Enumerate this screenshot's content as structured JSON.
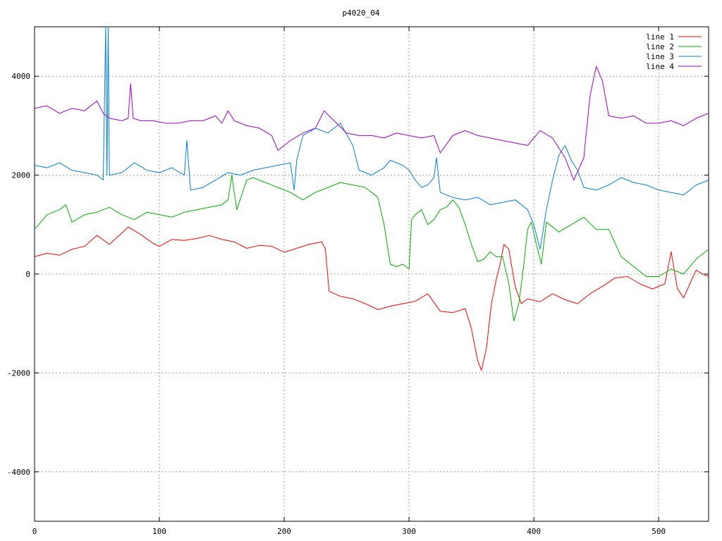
{
  "chart_data": {
    "type": "line",
    "title": "p4020_04",
    "xlabel": "",
    "ylabel": "",
    "xlim": [
      0,
      540
    ],
    "ylim": [
      -5000,
      5000
    ],
    "grid": true,
    "legend_position": "top-right",
    "x_ticks": [
      0,
      100,
      200,
      300,
      400,
      500
    ],
    "y_ticks": [
      -4000,
      -2000,
      0,
      2000,
      4000
    ],
    "x_tick_labels": [
      "0",
      "100",
      "200",
      "300",
      "400",
      "500"
    ],
    "y_tick_labels": [
      "-4000",
      "-2000",
      "0",
      "2000",
      "4000"
    ],
    "series": [
      {
        "name": "line 1",
        "color": "#ff0000",
        "points": [
          [
            0,
            350
          ],
          [
            10,
            420
          ],
          [
            20,
            380
          ],
          [
            30,
            500
          ],
          [
            40,
            560
          ],
          [
            50,
            780
          ],
          [
            60,
            600
          ],
          [
            70,
            830
          ],
          [
            75,
            950
          ],
          [
            85,
            800
          ],
          [
            95,
            620
          ],
          [
            100,
            560
          ],
          [
            110,
            700
          ],
          [
            120,
            680
          ],
          [
            130,
            720
          ],
          [
            140,
            780
          ],
          [
            150,
            700
          ],
          [
            160,
            650
          ],
          [
            170,
            520
          ],
          [
            180,
            580
          ],
          [
            190,
            560
          ],
          [
            200,
            440
          ],
          [
            210,
            520
          ],
          [
            220,
            600
          ],
          [
            230,
            650
          ],
          [
            233,
            500
          ],
          [
            236,
            -350
          ],
          [
            245,
            -450
          ],
          [
            255,
            -500
          ],
          [
            265,
            -600
          ],
          [
            275,
            -720
          ],
          [
            285,
            -650
          ],
          [
            295,
            -600
          ],
          [
            305,
            -550
          ],
          [
            315,
            -400
          ],
          [
            325,
            -750
          ],
          [
            335,
            -780
          ],
          [
            345,
            -700
          ],
          [
            350,
            -1100
          ],
          [
            355,
            -1750
          ],
          [
            358,
            -1950
          ],
          [
            362,
            -1500
          ],
          [
            366,
            -600
          ],
          [
            370,
            -100
          ],
          [
            373,
            200
          ],
          [
            376,
            600
          ],
          [
            380,
            500
          ],
          [
            385,
            -250
          ],
          [
            390,
            -600
          ],
          [
            395,
            -500
          ],
          [
            405,
            -560
          ],
          [
            415,
            -400
          ],
          [
            425,
            -520
          ],
          [
            435,
            -600
          ],
          [
            445,
            -400
          ],
          [
            455,
            -250
          ],
          [
            465,
            -80
          ],
          [
            475,
            -50
          ],
          [
            485,
            -200
          ],
          [
            495,
            -300
          ],
          [
            505,
            -200
          ],
          [
            510,
            450
          ],
          [
            515,
            -300
          ],
          [
            520,
            -480
          ],
          [
            525,
            -200
          ],
          [
            530,
            80
          ],
          [
            535,
            0
          ],
          [
            540,
            -50
          ]
        ]
      },
      {
        "name": "line 2",
        "color": "#00b000",
        "points": [
          [
            0,
            900
          ],
          [
            10,
            1200
          ],
          [
            20,
            1300
          ],
          [
            25,
            1400
          ],
          [
            30,
            1050
          ],
          [
            40,
            1200
          ],
          [
            50,
            1250
          ],
          [
            60,
            1350
          ],
          [
            70,
            1200
          ],
          [
            80,
            1100
          ],
          [
            90,
            1250
          ],
          [
            100,
            1200
          ],
          [
            110,
            1150
          ],
          [
            120,
            1250
          ],
          [
            130,
            1300
          ],
          [
            140,
            1350
          ],
          [
            150,
            1400
          ],
          [
            155,
            1500
          ],
          [
            158,
            2000
          ],
          [
            162,
            1300
          ],
          [
            170,
            1900
          ],
          [
            175,
            1950
          ],
          [
            185,
            1850
          ],
          [
            195,
            1750
          ],
          [
            205,
            1650
          ],
          [
            215,
            1500
          ],
          [
            225,
            1650
          ],
          [
            235,
            1750
          ],
          [
            245,
            1850
          ],
          [
            255,
            1800
          ],
          [
            265,
            1750
          ],
          [
            275,
            1550
          ],
          [
            280,
            1000
          ],
          [
            285,
            200
          ],
          [
            290,
            150
          ],
          [
            295,
            200
          ],
          [
            300,
            100
          ],
          [
            302,
            1100
          ],
          [
            305,
            1200
          ],
          [
            310,
            1300
          ],
          [
            315,
            1000
          ],
          [
            320,
            1100
          ],
          [
            325,
            1300
          ],
          [
            330,
            1350
          ],
          [
            335,
            1500
          ],
          [
            340,
            1350
          ],
          [
            345,
            1000
          ],
          [
            350,
            600
          ],
          [
            355,
            250
          ],
          [
            360,
            300
          ],
          [
            365,
            450
          ],
          [
            370,
            350
          ],
          [
            375,
            350
          ],
          [
            380,
            -200
          ],
          [
            384,
            -950
          ],
          [
            388,
            -600
          ],
          [
            392,
            200
          ],
          [
            395,
            900
          ],
          [
            398,
            1050
          ],
          [
            402,
            600
          ],
          [
            406,
            200
          ],
          [
            410,
            1050
          ],
          [
            420,
            850
          ],
          [
            430,
            1000
          ],
          [
            440,
            1150
          ],
          [
            450,
            900
          ],
          [
            460,
            900
          ],
          [
            470,
            350
          ],
          [
            480,
            150
          ],
          [
            490,
            -50
          ],
          [
            500,
            -50
          ],
          [
            510,
            100
          ],
          [
            520,
            0
          ],
          [
            530,
            300
          ],
          [
            540,
            500
          ]
        ]
      },
      {
        "name": "line 3",
        "color": "#0080e0",
        "points": [
          [
            0,
            2200
          ],
          [
            10,
            2150
          ],
          [
            20,
            2250
          ],
          [
            30,
            2100
          ],
          [
            40,
            2050
          ],
          [
            50,
            2000
          ],
          [
            55,
            1900
          ],
          [
            57,
            5000
          ],
          [
            58,
            2000
          ],
          [
            59,
            5000
          ],
          [
            60,
            2000
          ],
          [
            70,
            2050
          ],
          [
            80,
            2250
          ],
          [
            90,
            2100
          ],
          [
            100,
            2050
          ],
          [
            110,
            2150
          ],
          [
            120,
            2000
          ],
          [
            122,
            2700
          ],
          [
            125,
            1700
          ],
          [
            135,
            1750
          ],
          [
            145,
            1900
          ],
          [
            155,
            2050
          ],
          [
            165,
            2000
          ],
          [
            175,
            2100
          ],
          [
            185,
            2150
          ],
          [
            195,
            2200
          ],
          [
            205,
            2250
          ],
          [
            208,
            1700
          ],
          [
            210,
            2300
          ],
          [
            215,
            2800
          ],
          [
            225,
            2950
          ],
          [
            235,
            2850
          ],
          [
            245,
            3050
          ],
          [
            255,
            2600
          ],
          [
            260,
            2100
          ],
          [
            270,
            2000
          ],
          [
            280,
            2150
          ],
          [
            285,
            2300
          ],
          [
            295,
            2200
          ],
          [
            300,
            2100
          ],
          [
            305,
            1900
          ],
          [
            310,
            1750
          ],
          [
            315,
            1800
          ],
          [
            320,
            1950
          ],
          [
            322,
            2350
          ],
          [
            325,
            1650
          ],
          [
            335,
            1550
          ],
          [
            345,
            1500
          ],
          [
            355,
            1550
          ],
          [
            365,
            1400
          ],
          [
            375,
            1450
          ],
          [
            385,
            1500
          ],
          [
            395,
            1300
          ],
          [
            400,
            1000
          ],
          [
            405,
            500
          ],
          [
            410,
            1300
          ],
          [
            415,
            1900
          ],
          [
            420,
            2400
          ],
          [
            425,
            2600
          ],
          [
            430,
            2300
          ],
          [
            435,
            2100
          ],
          [
            440,
            1750
          ],
          [
            450,
            1700
          ],
          [
            460,
            1800
          ],
          [
            470,
            1950
          ],
          [
            480,
            1850
          ],
          [
            490,
            1800
          ],
          [
            500,
            1700
          ],
          [
            510,
            1650
          ],
          [
            520,
            1600
          ],
          [
            530,
            1800
          ],
          [
            540,
            1900
          ]
        ]
      },
      {
        "name": "line 4",
        "color": "#a000d0",
        "points": [
          [
            0,
            3350
          ],
          [
            10,
            3400
          ],
          [
            20,
            3250
          ],
          [
            30,
            3350
          ],
          [
            40,
            3300
          ],
          [
            50,
            3500
          ],
          [
            55,
            3250
          ],
          [
            60,
            3150
          ],
          [
            70,
            3100
          ],
          [
            75,
            3150
          ],
          [
            77,
            3850
          ],
          [
            79,
            3150
          ],
          [
            85,
            3100
          ],
          [
            95,
            3100
          ],
          [
            105,
            3050
          ],
          [
            115,
            3050
          ],
          [
            125,
            3100
          ],
          [
            135,
            3100
          ],
          [
            145,
            3200
          ],
          [
            150,
            3050
          ],
          [
            155,
            3300
          ],
          [
            160,
            3100
          ],
          [
            170,
            3000
          ],
          [
            180,
            2950
          ],
          [
            190,
            2800
          ],
          [
            195,
            2500
          ],
          [
            205,
            2700
          ],
          [
            215,
            2850
          ],
          [
            225,
            2950
          ],
          [
            232,
            3300
          ],
          [
            240,
            3100
          ],
          [
            250,
            2850
          ],
          [
            260,
            2800
          ],
          [
            270,
            2800
          ],
          [
            280,
            2750
          ],
          [
            290,
            2850
          ],
          [
            300,
            2800
          ],
          [
            310,
            2750
          ],
          [
            320,
            2800
          ],
          [
            325,
            2450
          ],
          [
            335,
            2800
          ],
          [
            345,
            2900
          ],
          [
            355,
            2800
          ],
          [
            365,
            2750
          ],
          [
            375,
            2700
          ],
          [
            385,
            2650
          ],
          [
            395,
            2600
          ],
          [
            405,
            2900
          ],
          [
            415,
            2750
          ],
          [
            425,
            2350
          ],
          [
            432,
            1900
          ],
          [
            440,
            2350
          ],
          [
            445,
            3600
          ],
          [
            450,
            4200
          ],
          [
            455,
            3900
          ],
          [
            460,
            3200
          ],
          [
            470,
            3150
          ],
          [
            480,
            3200
          ],
          [
            490,
            3050
          ],
          [
            500,
            3050
          ],
          [
            510,
            3100
          ],
          [
            520,
            3000
          ],
          [
            530,
            3150
          ],
          [
            540,
            3250
          ]
        ]
      }
    ]
  }
}
